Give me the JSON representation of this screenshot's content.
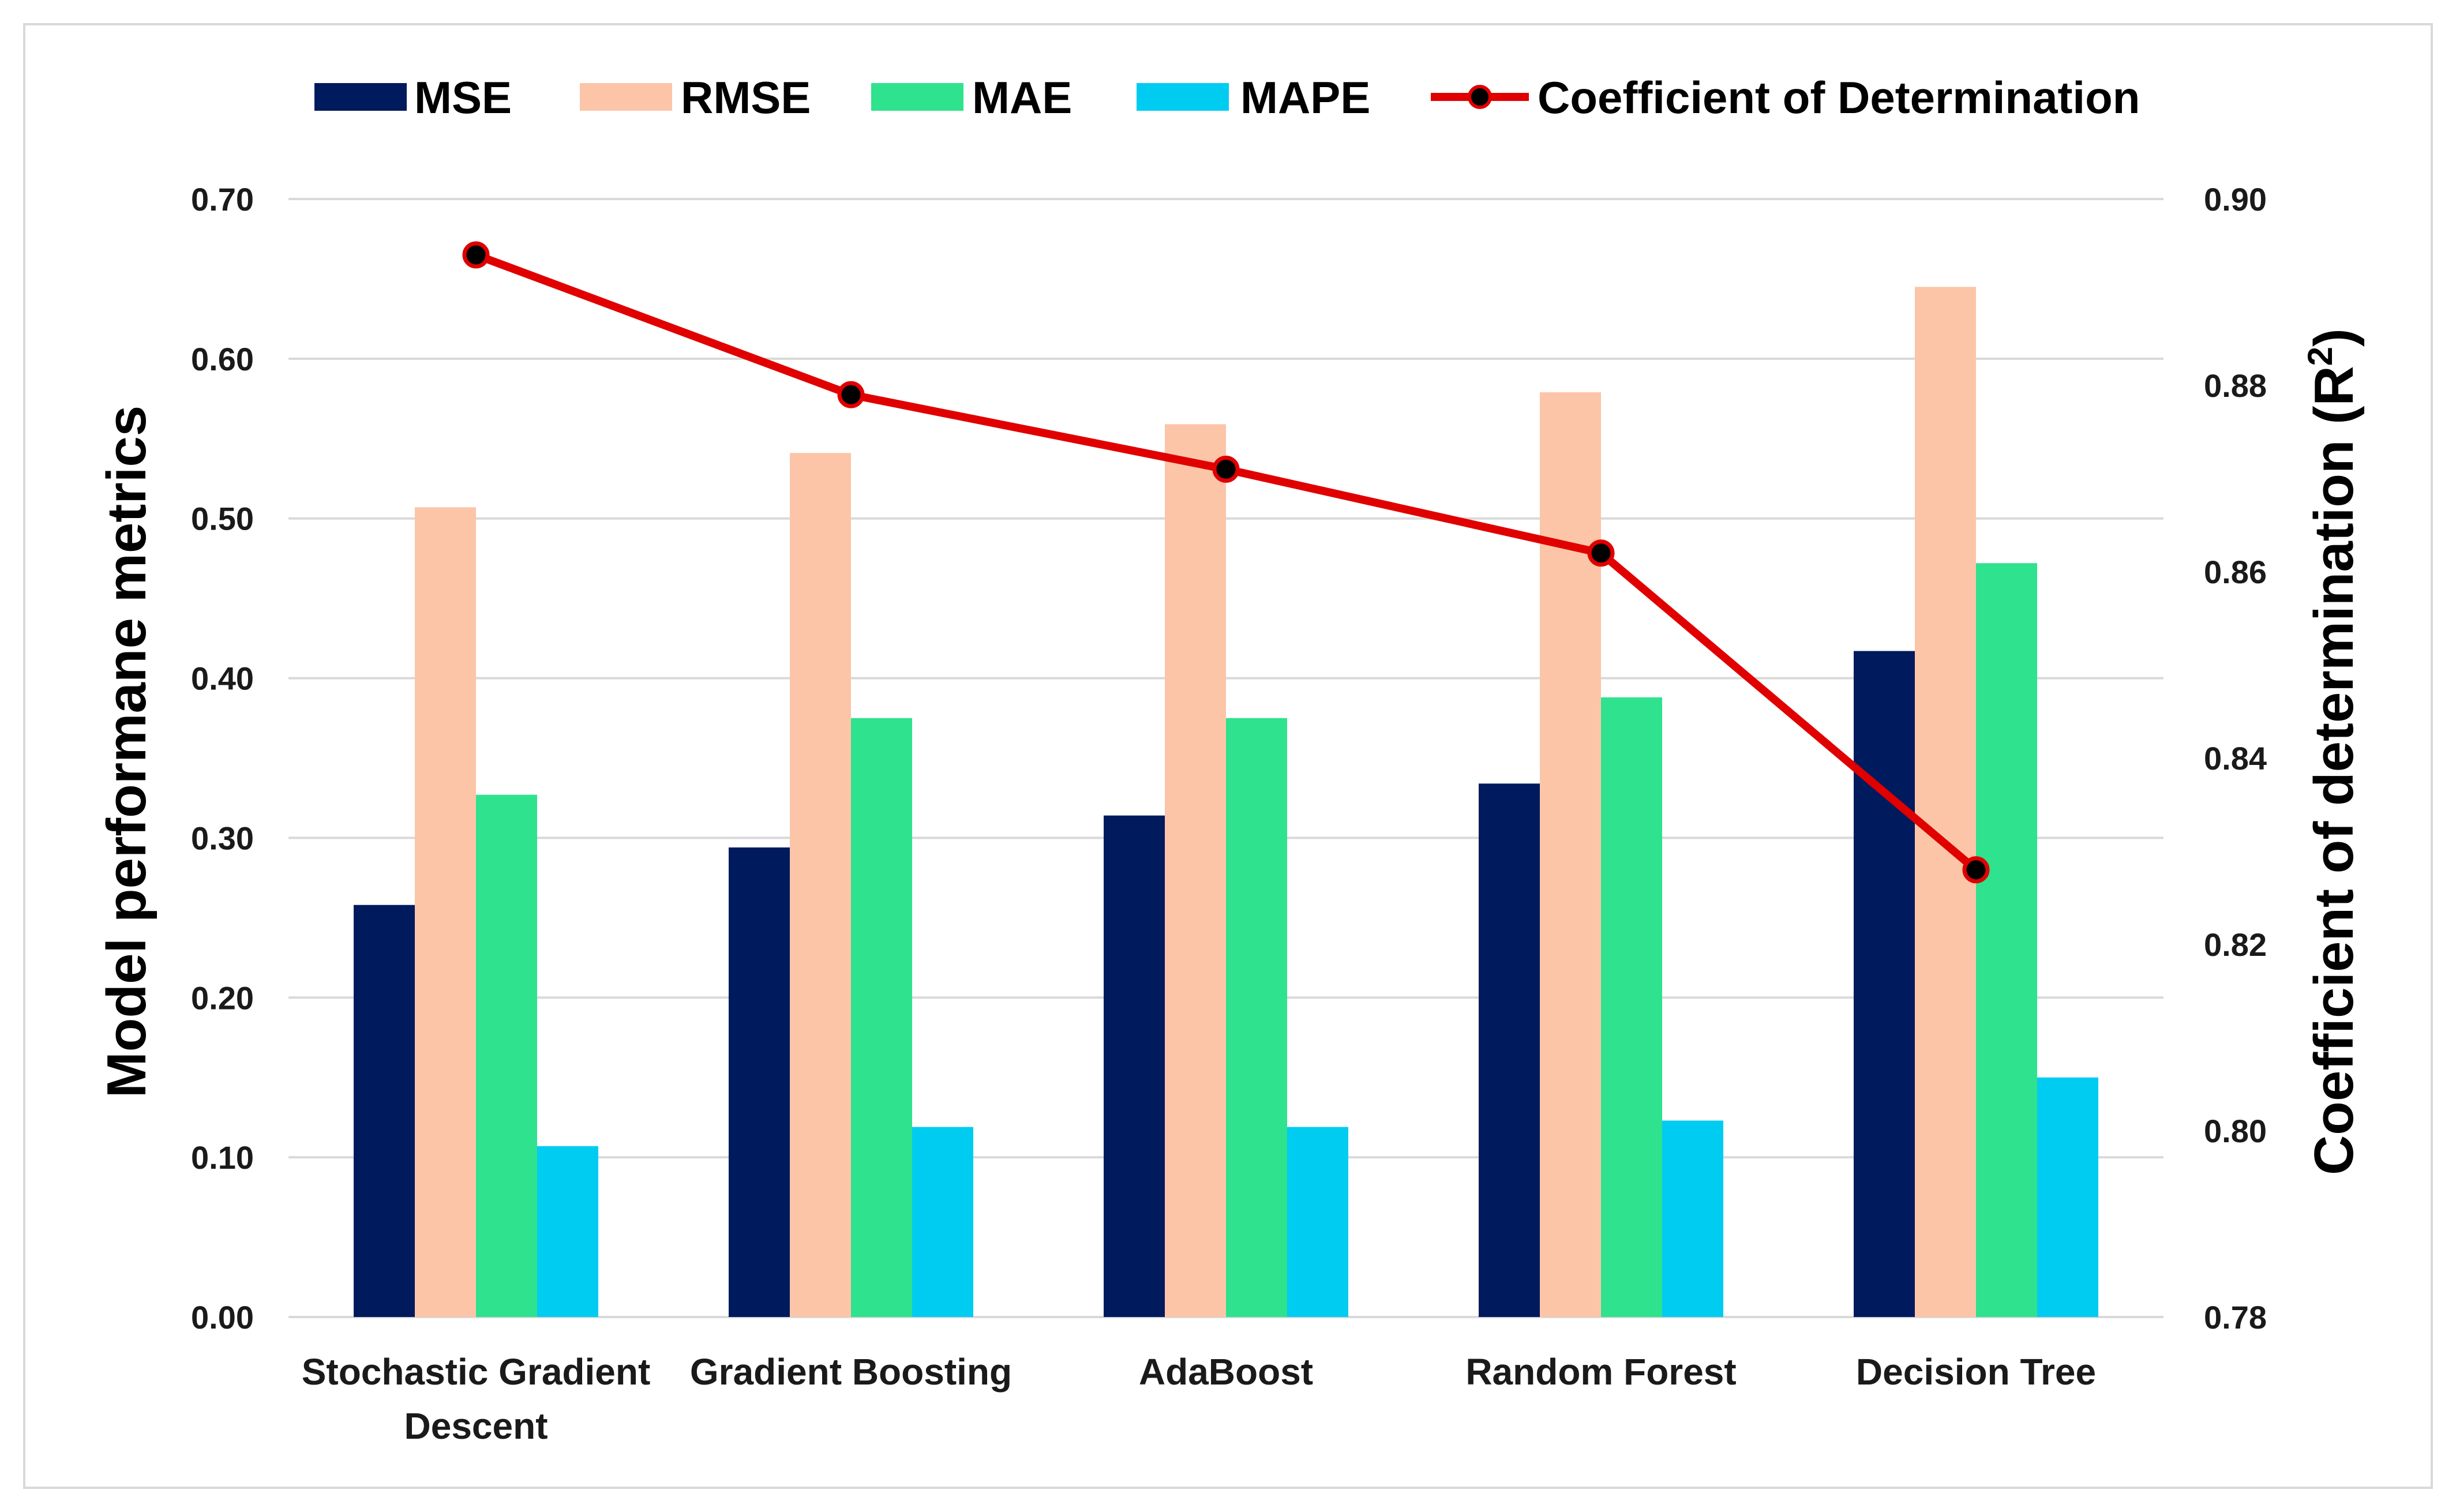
{
  "colors": {
    "MSE": "#001a5e",
    "RMSE": "#fcc5a8",
    "MAE": "#2fe28e",
    "MAPE": "#00ccf2",
    "r2_line": "#e00000",
    "r2_marker": "#000000",
    "grid": "#d9d9d9"
  },
  "chart_data": {
    "type": "bar",
    "categories": [
      [
        "Stochastic Gradient",
        "Descent"
      ],
      [
        "Gradient Boosting"
      ],
      [
        "AdaBoost"
      ],
      [
        "Random Forest"
      ],
      [
        "Decision Tree"
      ]
    ],
    "series": [
      {
        "name": "MSE",
        "values": [
          0.258,
          0.294,
          0.314,
          0.334,
          0.417
        ]
      },
      {
        "name": "RMSE",
        "values": [
          0.507,
          0.541,
          0.559,
          0.579,
          0.645
        ]
      },
      {
        "name": "MAE",
        "values": [
          0.327,
          0.375,
          0.375,
          0.388,
          0.472
        ]
      },
      {
        "name": "MAPE",
        "values": [
          0.107,
          0.119,
          0.119,
          0.123,
          0.15
        ]
      }
    ],
    "line_series": {
      "name": "Coefficient of Determination",
      "values": [
        0.894,
        0.879,
        0.871,
        0.862,
        0.828
      ],
      "axis": "right"
    },
    "ylabel": "Model performane metrics",
    "y2label_main": "Coefficient of determination (R",
    "y2label_sup": "2",
    "y2label_end": ")",
    "ylim": [
      0,
      0.7
    ],
    "y2lim": [
      0.78,
      0.9
    ],
    "yticks": [
      "0.00",
      "0.10",
      "0.20",
      "0.30",
      "0.40",
      "0.50",
      "0.60",
      "0.70"
    ],
    "y2ticks": [
      "0.78",
      "0.80",
      "0.82",
      "0.84",
      "0.86",
      "0.88",
      "0.90"
    ],
    "grid": true,
    "legend": "top"
  }
}
